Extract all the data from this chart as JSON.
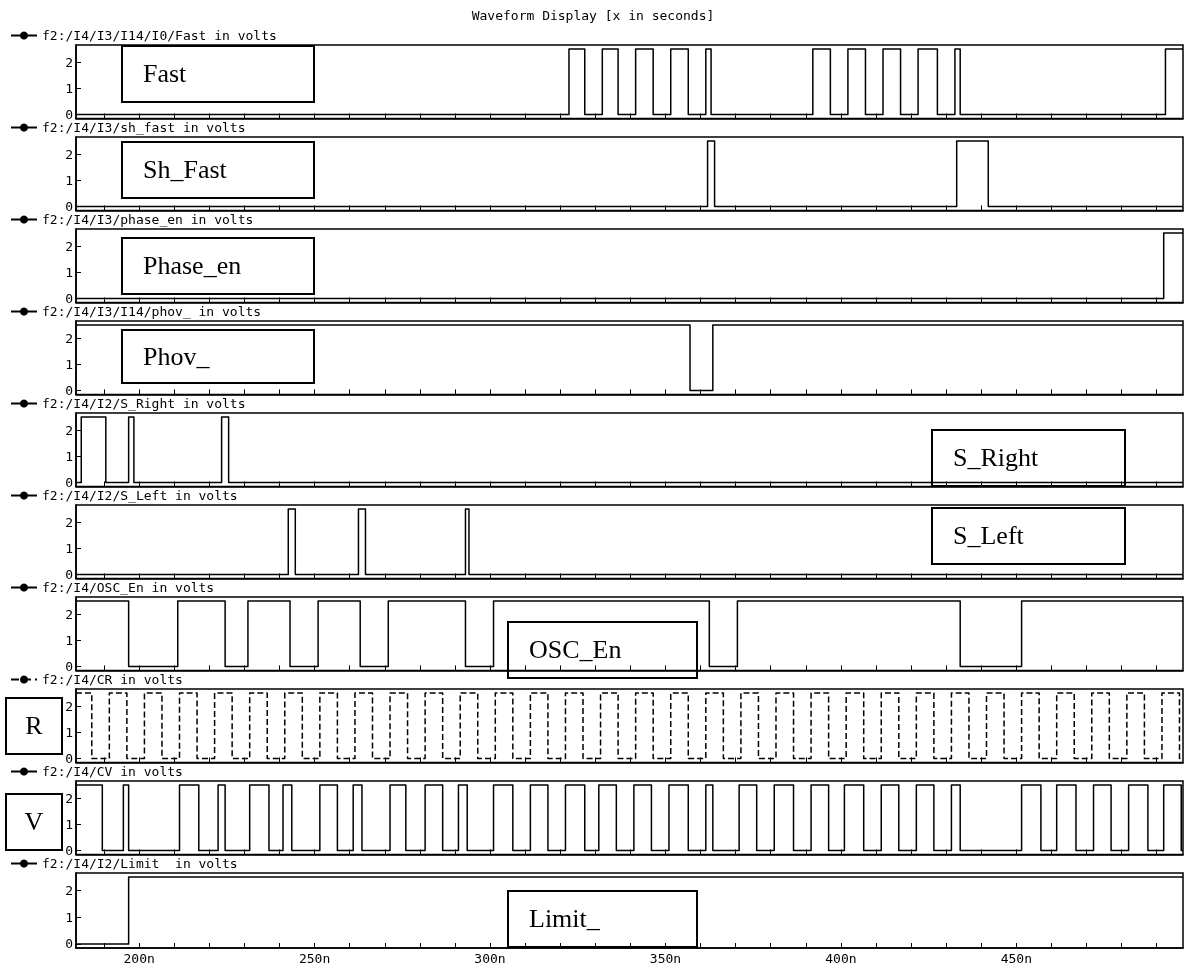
{
  "chart_data": [
    {
      "type": "step",
      "title": "Waveform Display [x in seconds]",
      "legend": "top left",
      "marker": "none",
      "line_style": "solid",
      "grid": false,
      "tick_labels": "y",
      "annotations": [
        "Fast"
      ],
      "xlim": [
        182,
        497.5
      ],
      "ylim": [
        -0.15,
        2.65
      ],
      "yticks": [
        0,
        1,
        2
      ],
      "xticks": [
        190,
        200,
        210,
        220,
        230,
        240,
        250,
        260,
        270,
        280,
        290,
        300,
        310,
        320,
        330,
        340,
        350,
        360,
        370,
        380,
        390,
        400,
        410,
        420,
        430,
        440,
        450,
        460,
        470,
        480,
        490
      ],
      "series": [
        {
          "name": "f2:/I4/I3/I14/I0/Fast in volts",
          "color": "#000000",
          "x": [
            182,
            322.5,
            327,
            332,
            336.5,
            341.5,
            346.5,
            351.5,
            356.5,
            361.5,
            363,
            392,
            397,
            402,
            407,
            412,
            417,
            422,
            427.5,
            432.5,
            434,
            492.5,
            497.5
          ],
          "values": [
            0,
            2.5,
            0,
            2.5,
            0,
            2.5,
            0,
            2.5,
            0,
            2.5,
            0,
            2.5,
            0,
            2.5,
            0,
            2.5,
            0,
            2.5,
            0,
            2.5,
            0,
            2.5,
            2.5
          ]
        }
      ]
    },
    {
      "type": "step",
      "legend": "top left",
      "marker": "none",
      "line_style": "solid",
      "grid": false,
      "tick_labels": "y",
      "annotations": [
        "Sh_Fast"
      ],
      "xlim": [
        182,
        497.5
      ],
      "ylim": [
        -0.15,
        2.65
      ],
      "yticks": [
        0,
        1,
        2
      ],
      "xticks": [
        190,
        200,
        210,
        220,
        230,
        240,
        250,
        260,
        270,
        280,
        290,
        300,
        310,
        320,
        330,
        340,
        350,
        360,
        370,
        380,
        390,
        400,
        410,
        420,
        430,
        440,
        450,
        460,
        470,
        480,
        490
      ],
      "series": [
        {
          "name": "f2:/I4/I3/sh_fast in volts",
          "color": "#000000",
          "x": [
            182,
            362,
            364,
            433,
            442,
            497.5
          ],
          "values": [
            0,
            2.5,
            0,
            2.5,
            0,
            0
          ]
        }
      ]
    },
    {
      "type": "step",
      "legend": "top left",
      "marker": "none",
      "line_style": "solid",
      "grid": false,
      "tick_labels": "y",
      "annotations": [
        "Phase_en"
      ],
      "xlim": [
        182,
        497.5
      ],
      "ylim": [
        -0.15,
        2.65
      ],
      "yticks": [
        0,
        1,
        2
      ],
      "xticks": [
        190,
        200,
        210,
        220,
        230,
        240,
        250,
        260,
        270,
        280,
        290,
        300,
        310,
        320,
        330,
        340,
        350,
        360,
        370,
        380,
        390,
        400,
        410,
        420,
        430,
        440,
        450,
        460,
        470,
        480,
        490
      ],
      "series": [
        {
          "name": "f2:/I4/I3/phase_en in volts",
          "color": "#000000",
          "x": [
            182,
            492,
            497.5
          ],
          "values": [
            0,
            2.5,
            2.5
          ]
        }
      ]
    },
    {
      "type": "step",
      "legend": "top left",
      "marker": "none",
      "line_style": "solid",
      "grid": false,
      "tick_labels": "y",
      "annotations": [
        "Phov_"
      ],
      "xlim": [
        182,
        497.5
      ],
      "ylim": [
        -0.15,
        2.65
      ],
      "yticks": [
        0,
        1,
        2
      ],
      "xticks": [
        190,
        200,
        210,
        220,
        230,
        240,
        250,
        260,
        270,
        280,
        290,
        300,
        310,
        320,
        330,
        340,
        350,
        360,
        370,
        380,
        390,
        400,
        410,
        420,
        430,
        440,
        450,
        460,
        470,
        480,
        490
      ],
      "series": [
        {
          "name": "f2:/I4/I3/I14/phov_ in volts",
          "color": "#000000",
          "x": [
            182,
            357,
            363.5,
            497.5
          ],
          "values": [
            2.5,
            0,
            2.5,
            2.5
          ]
        }
      ]
    },
    {
      "type": "step",
      "legend": "top left",
      "marker": "none",
      "line_style": "solid",
      "grid": false,
      "tick_labels": "y",
      "annotations": [
        "S_Right"
      ],
      "xlim": [
        182,
        497.5
      ],
      "ylim": [
        -0.15,
        2.65
      ],
      "yticks": [
        0,
        1,
        2
      ],
      "xticks": [
        190,
        200,
        210,
        220,
        230,
        240,
        250,
        260,
        270,
        280,
        290,
        300,
        310,
        320,
        330,
        340,
        350,
        360,
        370,
        380,
        390,
        400,
        410,
        420,
        430,
        440,
        450,
        460,
        470,
        480,
        490
      ],
      "series": [
        {
          "name": "f2:/I4/I2/S_Right in volts",
          "color": "#000000",
          "x": [
            182,
            183.5,
            190.5,
            197,
            198.5,
            223.5,
            225.5,
            497.5
          ],
          "values": [
            0,
            2.5,
            0,
            2.5,
            0,
            2.5,
            0,
            0
          ]
        }
      ]
    },
    {
      "type": "step",
      "legend": "top left",
      "marker": "none",
      "line_style": "solid",
      "grid": false,
      "tick_labels": "y",
      "annotations": [
        "S_Left"
      ],
      "xlim": [
        182,
        497.5
      ],
      "ylim": [
        -0.15,
        2.65
      ],
      "yticks": [
        0,
        1,
        2
      ],
      "xticks": [
        190,
        200,
        210,
        220,
        230,
        240,
        250,
        260,
        270,
        280,
        290,
        300,
        310,
        320,
        330,
        340,
        350,
        360,
        370,
        380,
        390,
        400,
        410,
        420,
        430,
        440,
        450,
        460,
        470,
        480,
        490
      ],
      "series": [
        {
          "name": "f2:/I4/I2/S_Left in volts",
          "color": "#000000",
          "x": [
            182,
            242.5,
            244.5,
            262.5,
            264.5,
            293,
            294,
            497.5
          ],
          "values": [
            0,
            2.5,
            0,
            2.5,
            0,
            2.5,
            0,
            0
          ]
        }
      ]
    },
    {
      "type": "step",
      "legend": "top left",
      "marker": "none",
      "line_style": "solid",
      "grid": false,
      "tick_labels": "y",
      "annotations": [
        "OSC_En"
      ],
      "xlim": [
        182,
        497.5
      ],
      "ylim": [
        -0.15,
        2.65
      ],
      "yticks": [
        0,
        1,
        2
      ],
      "xticks": [
        190,
        200,
        210,
        220,
        230,
        240,
        250,
        260,
        270,
        280,
        290,
        300,
        310,
        320,
        330,
        340,
        350,
        360,
        370,
        380,
        390,
        400,
        410,
        420,
        430,
        440,
        450,
        460,
        470,
        480,
        490
      ],
      "series": [
        {
          "name": "f2:/I4/OSC_En in volts",
          "color": "#000000",
          "x": [
            182,
            197,
            211,
            224.5,
            231,
            243,
            251,
            263,
            271,
            293,
            301,
            362.5,
            370.5,
            434,
            451.5,
            497.5
          ],
          "values": [
            2.5,
            0,
            2.5,
            0,
            2.5,
            0,
            2.5,
            0,
            2.5,
            0,
            2.5,
            0,
            2.5,
            0,
            2.5,
            2.5
          ]
        }
      ]
    },
    {
      "type": "step",
      "legend": "top left",
      "marker": "none",
      "line_style": "dashed",
      "grid": false,
      "tick_labels": "y",
      "annotations": [
        "R"
      ],
      "xlim": [
        182,
        497.5
      ],
      "ylim": [
        -0.15,
        2.65
      ],
      "yticks": [
        0,
        1,
        2
      ],
      "xticks": [
        190,
        200,
        210,
        220,
        230,
        240,
        250,
        260,
        270,
        280,
        290,
        300,
        310,
        320,
        330,
        340,
        350,
        360,
        370,
        380,
        390,
        400,
        410,
        420,
        430,
        440,
        450,
        460,
        470,
        480,
        490
      ],
      "series": [
        {
          "name": "f2:/I4/CR in volts",
          "color": "#000000",
          "x": [
            182,
            186.5,
            191.5,
            196.5,
            201.5,
            206.5,
            211.5,
            216.5,
            221.5,
            226.5,
            231.5,
            236.5,
            241.5,
            246.5,
            251.5,
            256.5,
            261.5,
            266.5,
            271.5,
            276.5,
            281.5,
            286.5,
            291.5,
            296.5,
            301.5,
            306.5,
            311.5,
            316.5,
            321.5,
            326.5,
            331.5,
            336.5,
            341.5,
            346.5,
            351.5,
            356.5,
            361.5,
            366.5,
            371.5,
            376.5,
            381.5,
            386.5,
            391.5,
            396.5,
            401.5,
            406.5,
            411.5,
            416.5,
            421.5,
            426.5,
            431.5,
            436.5,
            441.5,
            446.5,
            451.5,
            456.5,
            461.5,
            466.5,
            471.5,
            476.5,
            481.5,
            486.5,
            491.5,
            496.5,
            497.5
          ],
          "values": [
            2.5,
            0,
            2.5,
            0,
            2.5,
            0,
            2.5,
            0,
            2.5,
            0,
            2.5,
            0,
            2.5,
            0,
            2.5,
            0,
            2.5,
            0,
            2.5,
            0,
            2.5,
            0,
            2.5,
            0,
            2.5,
            0,
            2.5,
            0,
            2.5,
            0,
            2.5,
            0,
            2.5,
            0,
            2.5,
            0,
            2.5,
            0,
            2.5,
            0,
            2.5,
            0,
            2.5,
            0,
            2.5,
            0,
            2.5,
            0,
            2.5,
            0,
            2.5,
            0,
            2.5,
            0,
            2.5,
            0,
            2.5,
            0,
            2.5,
            0,
            2.5,
            0,
            2.5,
            0,
            0
          ]
        }
      ]
    },
    {
      "type": "step",
      "legend": "top left",
      "marker": "none",
      "line_style": "solid",
      "grid": false,
      "tick_labels": "y",
      "annotations": [
        "V"
      ],
      "xlim": [
        182,
        497.5
      ],
      "ylim": [
        -0.15,
        2.65
      ],
      "yticks": [
        0,
        1,
        2
      ],
      "xticks": [
        190,
        200,
        210,
        220,
        230,
        240,
        250,
        260,
        270,
        280,
        290,
        300,
        310,
        320,
        330,
        340,
        350,
        360,
        370,
        380,
        390,
        400,
        410,
        420,
        430,
        440,
        450,
        460,
        470,
        480,
        490
      ],
      "series": [
        {
          "name": "f2:/I4/CV in volts",
          "color": "#000000",
          "x": [
            182,
            189.5,
            195.5,
            197,
            211.5,
            217,
            222.5,
            224.5,
            231.5,
            237,
            241,
            243.5,
            251.5,
            256.5,
            261,
            263.5,
            271.5,
            276,
            281.5,
            286.5,
            291,
            293.5,
            301,
            306.5,
            311.5,
            316.5,
            321.5,
            327,
            331,
            336,
            341,
            346,
            351,
            356.5,
            361.5,
            363.5,
            371,
            376,
            381,
            386.5,
            391.5,
            396.5,
            401,
            406.5,
            411.5,
            416.5,
            421.5,
            426.5,
            431.5,
            434,
            451.5,
            457,
            461.5,
            467,
            472,
            477,
            482,
            487.5,
            492,
            497,
            497.5
          ],
          "values": [
            2.5,
            0,
            2.5,
            0,
            2.5,
            0,
            2.5,
            0,
            2.5,
            0,
            2.5,
            0,
            2.5,
            0,
            2.5,
            0,
            2.5,
            0,
            2.5,
            0,
            2.5,
            0,
            2.5,
            0,
            2.5,
            0,
            2.5,
            0,
            2.5,
            0,
            2.5,
            0,
            2.5,
            0,
            2.5,
            0,
            2.5,
            0,
            2.5,
            0,
            2.5,
            0,
            2.5,
            0,
            2.5,
            0,
            2.5,
            0,
            2.5,
            0,
            2.5,
            0,
            2.5,
            0,
            2.5,
            0,
            2.5,
            0,
            2.5,
            0,
            0
          ]
        }
      ]
    },
    {
      "type": "step",
      "legend": "top left",
      "marker": "none",
      "line_style": "solid",
      "grid": false,
      "annotations": [
        "Limit_"
      ],
      "xlim": [
        182,
        497.5
      ],
      "ylim": [
        -0.15,
        2.65
      ],
      "yticks": [
        0,
        1,
        2
      ],
      "xticks": [
        {
          "value": 190,
          "label": null
        },
        {
          "value": 200,
          "label": "200n"
        },
        {
          "value": 210,
          "label": null
        },
        {
          "value": 220,
          "label": null
        },
        {
          "value": 230,
          "label": null
        },
        {
          "value": 240,
          "label": null
        },
        {
          "value": 250,
          "label": "250n"
        },
        {
          "value": 260,
          "label": null
        },
        {
          "value": 270,
          "label": null
        },
        {
          "value": 280,
          "label": null
        },
        {
          "value": 290,
          "label": null
        },
        {
          "value": 300,
          "label": "300n"
        },
        {
          "value": 310,
          "label": null
        },
        {
          "value": 320,
          "label": null
        },
        {
          "value": 330,
          "label": null
        },
        {
          "value": 340,
          "label": null
        },
        {
          "value": 350,
          "label": "350n"
        },
        {
          "value": 360,
          "label": null
        },
        {
          "value": 370,
          "label": null
        },
        {
          "value": 380,
          "label": null
        },
        {
          "value": 390,
          "label": null
        },
        {
          "value": 400,
          "label": "400n"
        },
        {
          "value": 410,
          "label": null
        },
        {
          "value": 420,
          "label": null
        },
        {
          "value": 430,
          "label": null
        },
        {
          "value": 440,
          "label": null
        },
        {
          "value": 450,
          "label": "450n"
        },
        {
          "value": 460,
          "label": null
        },
        {
          "value": 470,
          "label": null
        },
        {
          "value": 480,
          "label": null
        },
        {
          "value": 490,
          "label": null
        }
      ],
      "series": [
        {
          "name": "f2:/I4/I2/Limit  in volts",
          "color": "#000000",
          "x": [
            182,
            197,
            497.5
          ],
          "values": [
            0,
            2.5,
            2.5
          ]
        }
      ]
    }
  ]
}
